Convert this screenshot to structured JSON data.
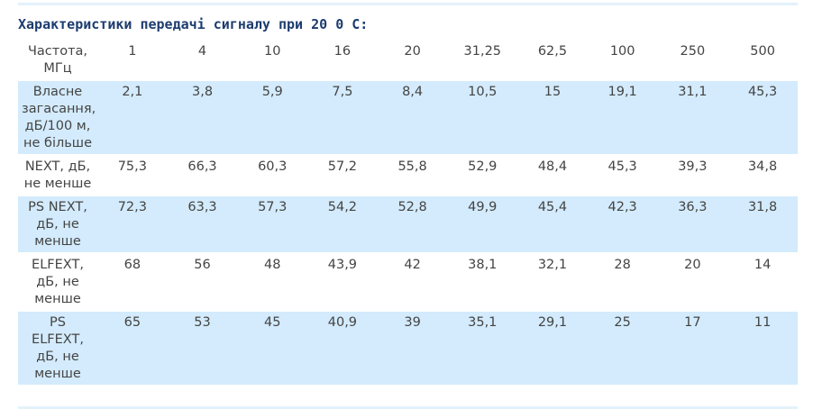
{
  "title": "Характеристики передачі сигналу при 20 0 С:",
  "table": {
    "header": [
      "Частота, МГц",
      "1",
      "4",
      "10",
      "16",
      "20",
      "31,25",
      "62,5",
      "100",
      "250",
      "500"
    ],
    "rows": [
      [
        "Власне загасання, дБ/100 м, не більше",
        "2,1",
        "3,8",
        "5,9",
        "7,5",
        "8,4",
        "10,5",
        "15",
        "19,1",
        "31,1",
        "45,3"
      ],
      [
        "NEXT, дБ, не менше",
        "75,3",
        "66,3",
        "60,3",
        "57,2",
        "55,8",
        "52,9",
        "48,4",
        "45,3",
        "39,3",
        "34,8"
      ],
      [
        "PS NEXT, дБ, не менше",
        "72,3",
        "63,3",
        "57,3",
        "54,2",
        "52,8",
        "49,9",
        "45,4",
        "42,3",
        "36,3",
        "31,8"
      ],
      [
        "ELFEXT, дБ, не менше",
        "68",
        "56",
        "48",
        "43,9",
        "42",
        "38,1",
        "32,1",
        "28",
        "20",
        "14"
      ],
      [
        "PS ELFEXT, дБ, не менше",
        "65",
        "53",
        "45",
        "40,9",
        "39",
        "35,1",
        "29,1",
        "25",
        "17",
        "11"
      ]
    ]
  }
}
